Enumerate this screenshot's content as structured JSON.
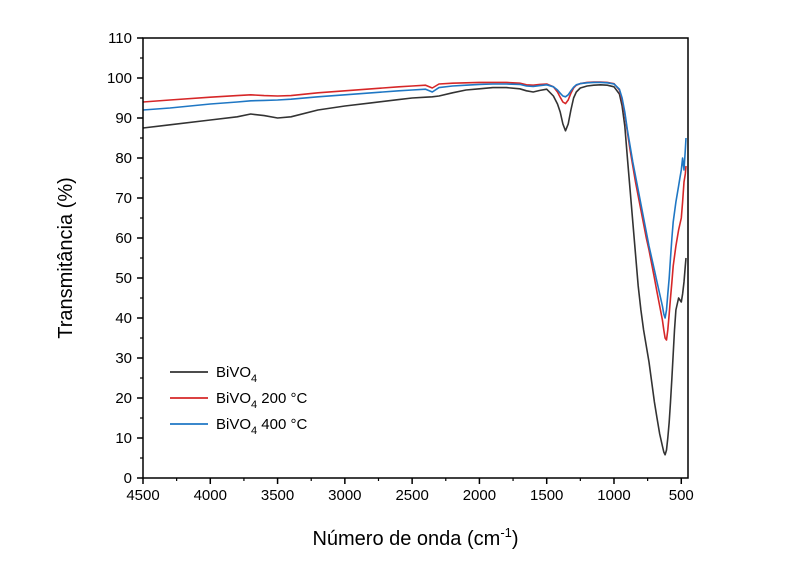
{
  "chart_data": {
    "type": "line",
    "xlabel": "Número de onda (cm",
    "xlabel_sup": "-1",
    "xlabel_end": ")",
    "ylabel": "Transmitância (%)",
    "xlim": [
      4500,
      450
    ],
    "ylim": [
      0,
      110
    ],
    "x_ticks": [
      4500,
      4000,
      3500,
      3000,
      2500,
      2000,
      1500,
      1000,
      500
    ],
    "x_tick_labels": [
      "4500",
      "4000",
      "3500",
      "3000",
      "2500",
      "2000",
      "1500",
      "1000",
      "500"
    ],
    "y_ticks": [
      0,
      10,
      20,
      30,
      40,
      50,
      60,
      70,
      80,
      90,
      100,
      110
    ],
    "y_tick_labels": [
      "0",
      "10",
      "20",
      "30",
      "40",
      "50",
      "60",
      "70",
      "80",
      "90",
      "100",
      "110"
    ],
    "grid": false,
    "legend_placement": "bottom-left",
    "series": [
      {
        "name": "BiVO",
        "name_sub": "4",
        "name_suffix": "",
        "color": "#333333",
        "x": [
          4500,
          4300,
          4000,
          3800,
          3700,
          3600,
          3500,
          3400,
          3200,
          3000,
          2800,
          2600,
          2500,
          2400,
          2350,
          2300,
          2200,
          2100,
          2000,
          1900,
          1800,
          1700,
          1650,
          1600,
          1550,
          1500,
          1450,
          1420,
          1400,
          1380,
          1360,
          1340,
          1320,
          1300,
          1280,
          1250,
          1200,
          1150,
          1100,
          1050,
          1000,
          960,
          940,
          920,
          900,
          880,
          860,
          840,
          820,
          800,
          780,
          760,
          740,
          720,
          700,
          680,
          660,
          640,
          630,
          620,
          610,
          600,
          590,
          580,
          570,
          560,
          550,
          540,
          520,
          500,
          490,
          480,
          470,
          465
        ],
        "y": [
          87.5,
          88.3,
          89.5,
          90.3,
          91.0,
          90.6,
          90.0,
          90.3,
          92.0,
          93.0,
          93.8,
          94.6,
          95.0,
          95.2,
          95.3,
          95.5,
          96.3,
          97.0,
          97.3,
          97.6,
          97.6,
          97.3,
          96.8,
          96.5,
          96.9,
          97.2,
          95.5,
          93.5,
          91.5,
          88.5,
          86.8,
          88.5,
          92.0,
          95.0,
          96.5,
          97.5,
          98.0,
          98.2,
          98.3,
          98.2,
          97.8,
          96.0,
          93.0,
          88.0,
          80.0,
          72.0,
          64.0,
          56.0,
          48.0,
          42.0,
          37.0,
          33.0,
          29.0,
          24.0,
          19.0,
          15.0,
          11.0,
          8.0,
          6.5,
          5.8,
          7.0,
          10.0,
          14.0,
          19.0,
          25.0,
          31.0,
          37.0,
          42.0,
          45.0,
          44.0,
          46.0,
          49.0,
          53.0,
          55.0
        ]
      },
      {
        "name": "BiVO",
        "name_sub": "4",
        "name_suffix": " 200 °C",
        "color": "#d62728",
        "x": [
          4500,
          4300,
          4000,
          3800,
          3700,
          3600,
          3500,
          3400,
          3200,
          3000,
          2800,
          2600,
          2500,
          2400,
          2350,
          2300,
          2200,
          2100,
          2000,
          1900,
          1800,
          1700,
          1650,
          1600,
          1550,
          1500,
          1450,
          1420,
          1400,
          1380,
          1360,
          1340,
          1320,
          1300,
          1280,
          1250,
          1200,
          1150,
          1100,
          1050,
          1000,
          960,
          940,
          920,
          900,
          880,
          860,
          840,
          820,
          800,
          780,
          760,
          740,
          720,
          700,
          680,
          660,
          640,
          630,
          620,
          610,
          600,
          590,
          580,
          570,
          560,
          540,
          520,
          500,
          490,
          480,
          470,
          465
        ],
        "y": [
          94.0,
          94.5,
          95.2,
          95.6,
          95.8,
          95.6,
          95.5,
          95.6,
          96.3,
          96.8,
          97.3,
          97.8,
          98.0,
          98.2,
          97.5,
          98.5,
          98.7,
          98.8,
          98.9,
          98.9,
          98.9,
          98.7,
          98.3,
          98.2,
          98.4,
          98.5,
          97.8,
          96.5,
          95.2,
          94.0,
          93.6,
          94.5,
          96.2,
          97.5,
          98.2,
          98.6,
          98.9,
          99.0,
          99.0,
          98.9,
          98.6,
          97.0,
          94.5,
          91.0,
          86.5,
          82.0,
          78.0,
          74.0,
          70.5,
          67.0,
          63.5,
          60.0,
          57.0,
          53.5,
          50.0,
          46.5,
          43.0,
          39.5,
          37.0,
          35.0,
          34.5,
          37.0,
          41.0,
          45.0,
          49.0,
          53.0,
          58.0,
          62.0,
          65.0,
          69.0,
          74.0,
          76.0,
          78.0
        ]
      },
      {
        "name": "BiVO",
        "name_sub": "4",
        "name_suffix": " 400 °C",
        "color": "#1f77c4",
        "x": [
          4500,
          4300,
          4000,
          3800,
          3700,
          3600,
          3500,
          3400,
          3200,
          3000,
          2800,
          2600,
          2500,
          2400,
          2350,
          2300,
          2200,
          2100,
          2000,
          1900,
          1800,
          1700,
          1650,
          1600,
          1550,
          1500,
          1450,
          1420,
          1400,
          1380,
          1360,
          1340,
          1320,
          1300,
          1280,
          1250,
          1200,
          1150,
          1100,
          1050,
          1000,
          960,
          940,
          920,
          900,
          880,
          860,
          840,
          820,
          800,
          780,
          760,
          740,
          720,
          700,
          680,
          660,
          640,
          630,
          620,
          610,
          600,
          590,
          580,
          570,
          560,
          540,
          520,
          510,
          500,
          490,
          480,
          470,
          465
        ],
        "y": [
          92.0,
          92.5,
          93.5,
          94.0,
          94.3,
          94.4,
          94.5,
          94.7,
          95.3,
          95.8,
          96.3,
          96.8,
          97.0,
          97.2,
          96.5,
          97.6,
          98.0,
          98.2,
          98.4,
          98.5,
          98.5,
          98.4,
          98.0,
          97.9,
          98.1,
          98.3,
          97.8,
          97.0,
          96.2,
          95.5,
          95.3,
          95.8,
          96.8,
          97.7,
          98.3,
          98.6,
          98.8,
          98.9,
          98.9,
          98.8,
          98.5,
          97.2,
          95.0,
          91.5,
          87.0,
          83.0,
          79.0,
          75.5,
          72.0,
          68.5,
          65.0,
          61.5,
          58.0,
          55.0,
          52.0,
          49.0,
          46.0,
          43.0,
          41.0,
          40.0,
          42.0,
          46.0,
          50.0,
          55.0,
          60.0,
          64.0,
          69.0,
          73.0,
          75.0,
          77.0,
          80.0,
          77.0,
          82.0,
          85.0
        ]
      }
    ]
  }
}
